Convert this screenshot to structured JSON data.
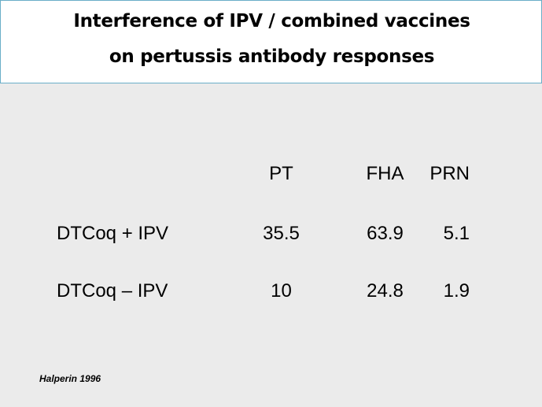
{
  "slide": {
    "title_line1": "Interference of IPV / combined vaccines",
    "title_line2": "on pertussis antibody responses",
    "citation": "Halperin 1996"
  },
  "table": {
    "columns": [
      "PT",
      "FHA",
      "PRN"
    ],
    "rows": [
      {
        "label": "DTCoq + IPV",
        "values": [
          "35.5",
          "63.9",
          "5.1"
        ]
      },
      {
        "label": "DTCoq – IPV",
        "values": [
          "10",
          "24.8",
          "1.9"
        ]
      }
    ]
  },
  "colors": {
    "background": "#ebebeb",
    "header_background": "#ffffff",
    "header_border": "#6aaec8"
  }
}
